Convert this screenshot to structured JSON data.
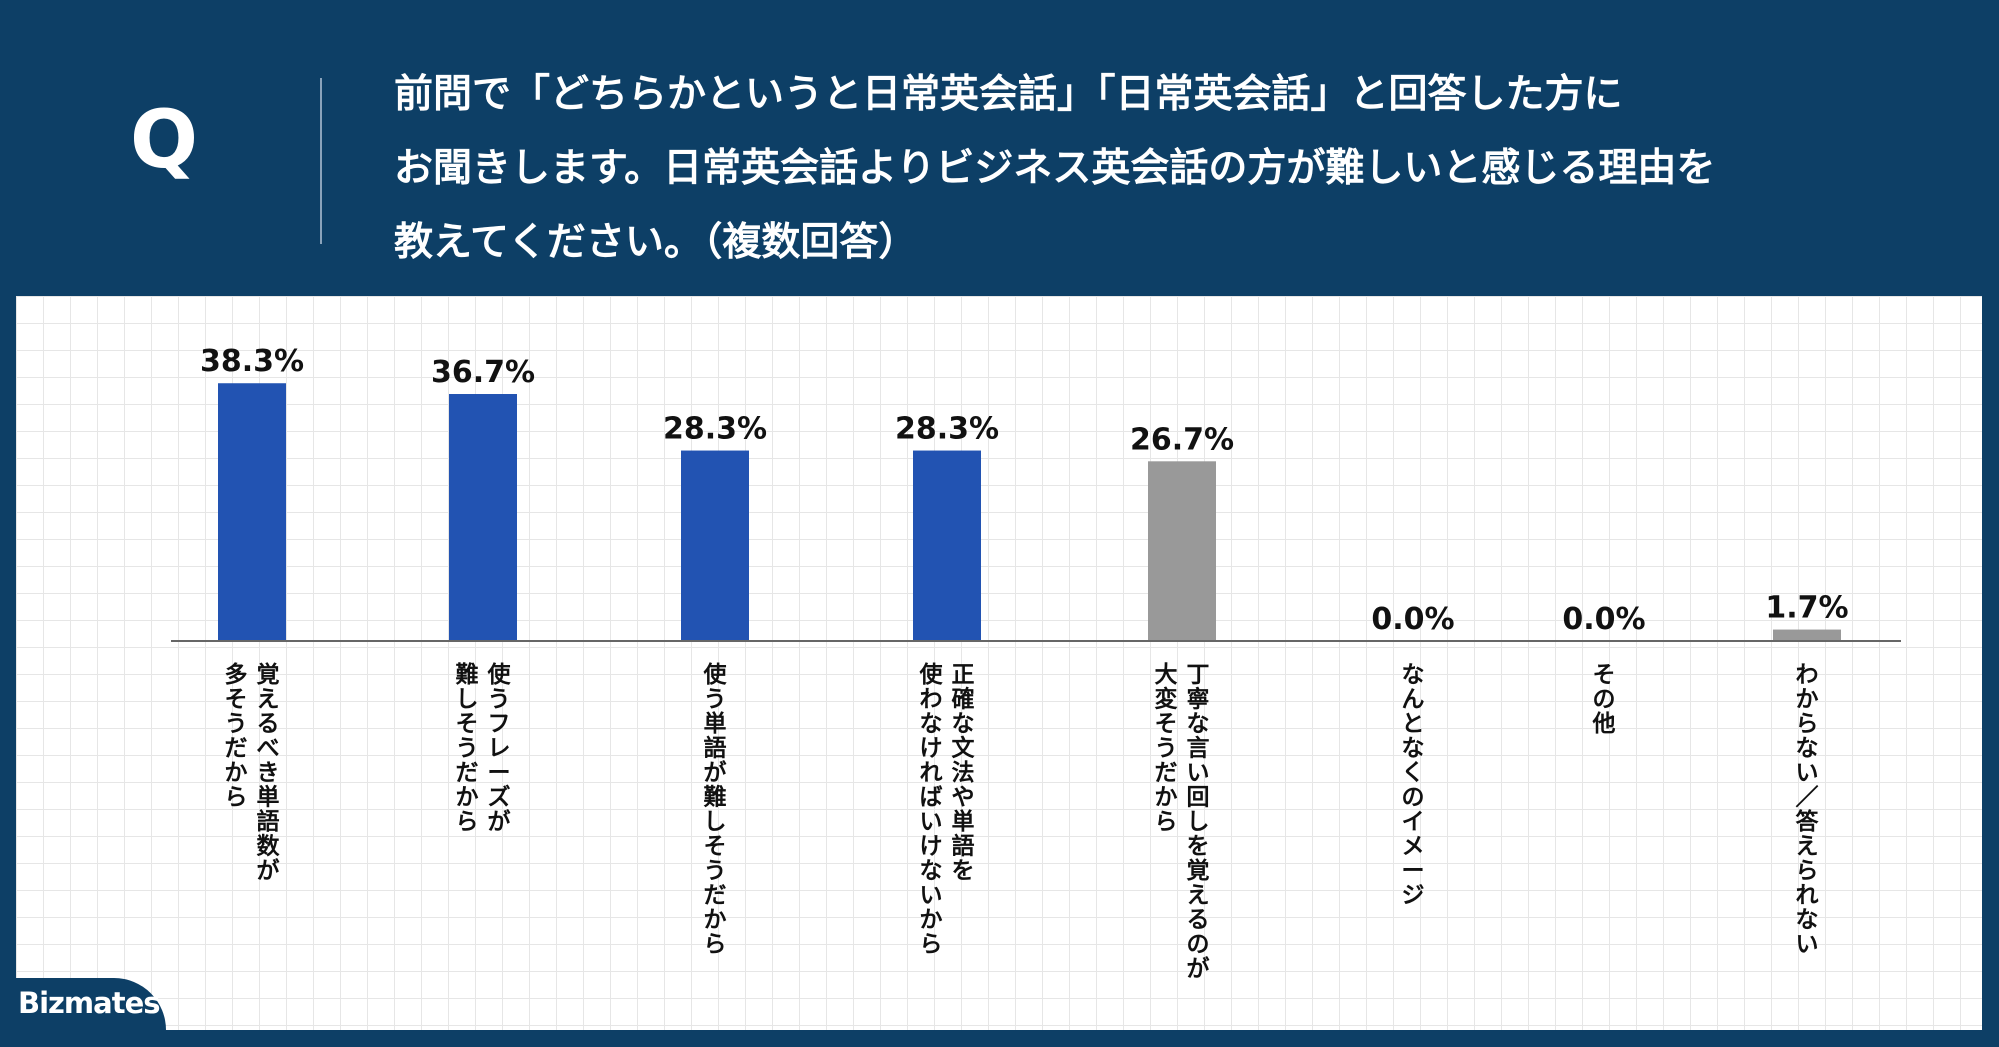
{
  "header": {
    "q_mark": "Q",
    "question_lines": [
      "前問で「どちらかというと日常英会話」「日常英会話」と回答した方に",
      "お聞きします。日常英会話よりビジネス英会話の方が難しいと感じる理由を",
      "教えてください。（複数回答）"
    ]
  },
  "brand": {
    "logo_text": "Bizmates"
  },
  "colors": {
    "header_bg": "#0d3f66",
    "highlight_bar": "#2253b2",
    "other_bar": "#999999",
    "axis": "#666666"
  },
  "chart_data": {
    "type": "bar",
    "title": "",
    "xlabel": "",
    "ylabel": "",
    "ylim": [
      0,
      40
    ],
    "grid": true,
    "categories": [
      [
        "覚えるべき単語数が",
        "多そうだから"
      ],
      [
        "使うフレーズが",
        "難しそうだから"
      ],
      [
        "使う単語が難しそうだから"
      ],
      [
        "正確な文法や単語を",
        "使わなければいけないから"
      ],
      [
        "丁寧な言い回しを覚えるのが",
        "大変そうだから"
      ],
      [
        "なんとなくのイメージ"
      ],
      [
        "その他"
      ],
      [
        "わからない／答えられない"
      ]
    ],
    "values": [
      38.3,
      36.7,
      28.3,
      28.3,
      26.7,
      0.0,
      0.0,
      1.7
    ],
    "value_labels": [
      "38.3%",
      "36.7%",
      "28.3%",
      "28.3%",
      "26.7%",
      "0.0%",
      "0.0%",
      "1.7%"
    ],
    "highlight": [
      true,
      true,
      true,
      true,
      false,
      false,
      false,
      false
    ]
  }
}
